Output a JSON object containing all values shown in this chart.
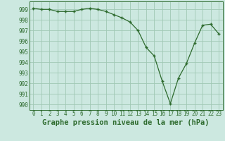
{
  "x": [
    0,
    1,
    2,
    3,
    4,
    5,
    6,
    7,
    8,
    9,
    10,
    11,
    12,
    13,
    14,
    15,
    16,
    17,
    18,
    19,
    20,
    21,
    22,
    23
  ],
  "y": [
    999.1,
    999.0,
    999.0,
    998.8,
    998.8,
    998.8,
    999.0,
    999.1,
    999.0,
    998.8,
    998.5,
    998.2,
    997.8,
    997.0,
    995.4,
    994.6,
    992.2,
    990.1,
    992.5,
    993.9,
    995.8,
    997.5,
    997.6,
    996.7
  ],
  "line_color": "#2d6a2d",
  "marker_color": "#2d6a2d",
  "bg_color": "#cce8e0",
  "grid_color": "#a0c8b4",
  "title": "Graphe pression niveau de la mer (hPa)",
  "ylim": [
    989.5,
    999.75
  ],
  "yticks": [
    990,
    991,
    992,
    993,
    994,
    995,
    996,
    997,
    998,
    999
  ],
  "xticks": [
    0,
    1,
    2,
    3,
    4,
    5,
    6,
    7,
    8,
    9,
    10,
    11,
    12,
    13,
    14,
    15,
    16,
    17,
    18,
    19,
    20,
    21,
    22,
    23
  ],
  "tick_fontsize": 5.5,
  "title_fontsize": 7.5
}
